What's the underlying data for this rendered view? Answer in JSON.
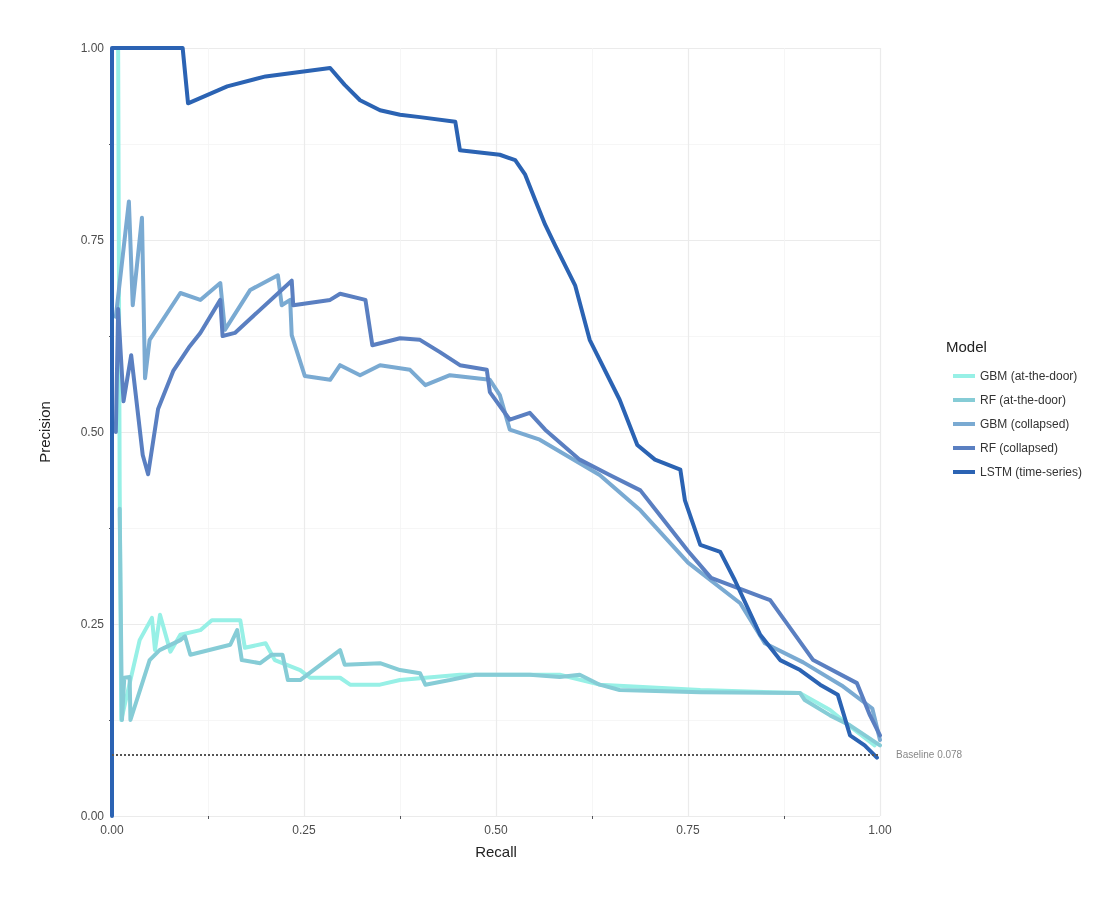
{
  "chart_data": {
    "type": "line",
    "xlabel": "Recall",
    "ylabel": "Precision",
    "legend_title": "Model",
    "legend": "right",
    "grid": true,
    "marker": "none",
    "line_style": "solid",
    "xlim": [
      0,
      1
    ],
    "ylim": [
      0,
      1
    ],
    "xticks": [
      {
        "value": 0,
        "label": "0.00"
      },
      {
        "value": 0.25,
        "label": "0.25"
      },
      {
        "value": 0.5,
        "label": "0.50"
      },
      {
        "value": 0.75,
        "label": "0.75"
      },
      {
        "value": 1,
        "label": "1.00"
      }
    ],
    "yticks": [
      {
        "value": 0,
        "label": "0.00"
      },
      {
        "value": 0.25,
        "label": "0.25"
      },
      {
        "value": 0.5,
        "label": "0.50"
      },
      {
        "value": 0.75,
        "label": "0.75"
      },
      {
        "value": 1,
        "label": "1.00"
      }
    ],
    "ref_lines": [
      {
        "axis": "y",
        "value": 0.078,
        "label": "Baseline 0.078",
        "color": "#555555",
        "line_style": "dotted"
      }
    ],
    "series": [
      {
        "name": "GBM (at-the-door)",
        "color": "#97f0e6",
        "x": [
          0.005,
          0.008,
          0.01,
          0.012,
          0.036,
          0.052,
          0.056,
          0.0625,
          0.076,
          0.089,
          0.115,
          0.13,
          0.167,
          0.173,
          0.2,
          0.212,
          0.245,
          0.258,
          0.297,
          0.31,
          0.349,
          0.375,
          0.453,
          0.583,
          0.635,
          0.766,
          0.896,
          0.935,
          0.967,
          0.993
        ],
        "values": [
          1.0,
          1.0,
          0.43,
          0.125,
          0.229,
          0.258,
          0.216,
          0.262,
          0.214,
          0.236,
          0.242,
          0.255,
          0.255,
          0.219,
          0.225,
          0.203,
          0.19,
          0.18,
          0.18,
          0.171,
          0.171,
          0.177,
          0.184,
          0.184,
          0.171,
          0.164,
          0.16,
          0.138,
          0.112,
          0.092
        ]
      },
      {
        "name": "RF (at-the-door)",
        "color": "#86ccd6",
        "x": [
          0.01,
          0.013,
          0.016,
          0.023,
          0.024,
          0.049,
          0.062,
          0.089,
          0.095,
          0.102,
          0.154,
          0.163,
          0.169,
          0.193,
          0.208,
          0.222,
          0.229,
          0.245,
          0.297,
          0.303,
          0.349,
          0.375,
          0.401,
          0.408,
          0.44,
          0.473,
          0.544,
          0.583,
          0.609,
          0.635,
          0.661,
          0.766,
          0.896,
          0.902,
          0.935,
          0.961,
          1.0
        ],
        "values": [
          0.4,
          0.125,
          0.18,
          0.181,
          0.125,
          0.203,
          0.216,
          0.229,
          0.234,
          0.21,
          0.223,
          0.242,
          0.203,
          0.199,
          0.21,
          0.21,
          0.177,
          0.177,
          0.216,
          0.197,
          0.199,
          0.19,
          0.186,
          0.171,
          0.177,
          0.184,
          0.184,
          0.181,
          0.184,
          0.171,
          0.164,
          0.161,
          0.16,
          0.151,
          0.131,
          0.118,
          0.092
        ]
      },
      {
        "name": "GBM (collapsed)",
        "color": "#7aaad2",
        "x": [
          0.005,
          0.022,
          0.027,
          0.039,
          0.043,
          0.049,
          0.089,
          0.115,
          0.141,
          0.147,
          0.18,
          0.216,
          0.221,
          0.232,
          0.234,
          0.251,
          0.284,
          0.297,
          0.323,
          0.349,
          0.388,
          0.408,
          0.44,
          0.492,
          0.505,
          0.518,
          0.557,
          0.635,
          0.688,
          0.75,
          0.818,
          0.85,
          0.9,
          0.95,
          0.99,
          1.0
        ],
        "values": [
          0.65,
          0.8,
          0.665,
          0.779,
          0.57,
          0.62,
          0.681,
          0.672,
          0.694,
          0.633,
          0.685,
          0.704,
          0.665,
          0.672,
          0.626,
          0.573,
          0.568,
          0.587,
          0.574,
          0.587,
          0.581,
          0.561,
          0.574,
          0.568,
          0.548,
          0.503,
          0.49,
          0.444,
          0.398,
          0.33,
          0.277,
          0.225,
          0.2,
          0.17,
          0.14,
          0.099
        ]
      },
      {
        "name": "RF (collapsed)",
        "color": "#5a7fc1",
        "x": [
          0.005,
          0.008,
          0.015,
          0.025,
          0.04,
          0.047,
          0.06,
          0.08,
          0.1,
          0.115,
          0.141,
          0.144,
          0.16,
          0.234,
          0.236,
          0.284,
          0.297,
          0.33,
          0.339,
          0.375,
          0.401,
          0.427,
          0.453,
          0.488,
          0.492,
          0.518,
          0.544,
          0.564,
          0.609,
          0.648,
          0.688,
          0.75,
          0.78,
          0.857,
          0.913,
          0.97,
          0.987,
          1.0
        ],
        "values": [
          0.5,
          0.66,
          0.54,
          0.6,
          0.47,
          0.445,
          0.53,
          0.58,
          0.61,
          0.629,
          0.672,
          0.625,
          0.629,
          0.697,
          0.665,
          0.672,
          0.68,
          0.672,
          0.613,
          0.622,
          0.62,
          0.604,
          0.587,
          0.581,
          0.552,
          0.516,
          0.525,
          0.503,
          0.464,
          0.444,
          0.424,
          0.345,
          0.31,
          0.281,
          0.203,
          0.173,
          0.131,
          0.105
        ]
      },
      {
        "name": "LSTM (time-series)",
        "color": "#2b63b3",
        "x": [
          0.0,
          0.0,
          0.092,
          0.099,
          0.15,
          0.2,
          0.284,
          0.303,
          0.323,
          0.349,
          0.375,
          0.401,
          0.447,
          0.453,
          0.505,
          0.525,
          0.538,
          0.551,
          0.564,
          0.577,
          0.59,
          0.603,
          0.622,
          0.661,
          0.684,
          0.707,
          0.74,
          0.746,
          0.766,
          0.792,
          0.811,
          0.844,
          0.87,
          0.896,
          0.922,
          0.945,
          0.961,
          0.98,
          0.996
        ],
        "values": [
          0.0,
          1.0,
          1.0,
          0.928,
          0.95,
          0.963,
          0.974,
          0.952,
          0.932,
          0.919,
          0.913,
          0.91,
          0.904,
          0.867,
          0.861,
          0.854,
          0.835,
          0.802,
          0.77,
          0.743,
          0.717,
          0.691,
          0.62,
          0.542,
          0.483,
          0.464,
          0.451,
          0.411,
          0.353,
          0.344,
          0.307,
          0.236,
          0.203,
          0.19,
          0.171,
          0.158,
          0.105,
          0.092,
          0.076
        ]
      }
    ]
  }
}
